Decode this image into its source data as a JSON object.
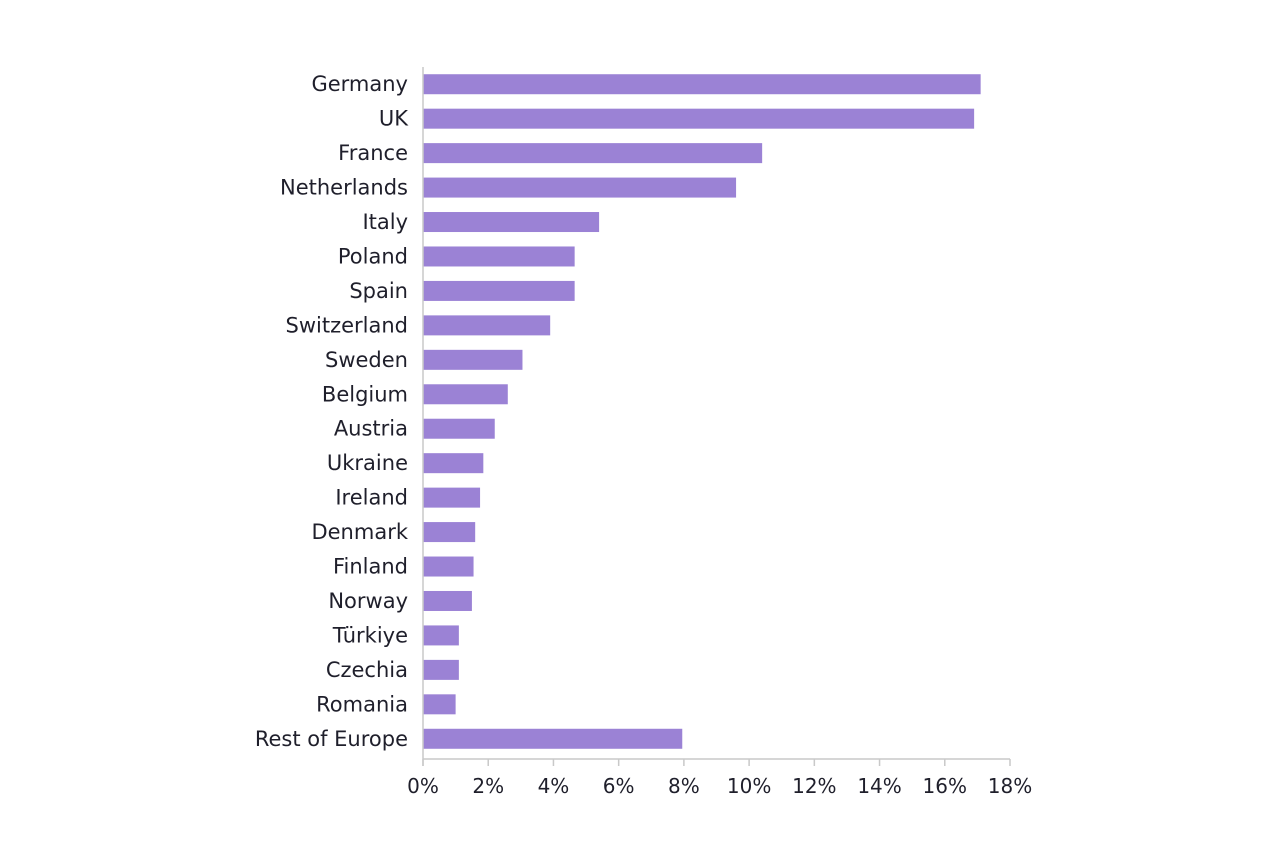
{
  "chart_data": {
    "type": "bar",
    "orientation": "horizontal",
    "categories": [
      "Germany",
      "UK",
      "France",
      "Netherlands",
      "Italy",
      "Poland",
      "Spain",
      "Switzerland",
      "Sweden",
      "Belgium",
      "Austria",
      "Ukraine",
      "Ireland",
      "Denmark",
      "Finland",
      "Norway",
      "Türkiye",
      "Czechia",
      "Romania",
      "Rest of Europe"
    ],
    "values": [
      17.1,
      16.9,
      10.4,
      9.6,
      5.4,
      4.65,
      4.65,
      3.9,
      3.05,
      2.6,
      2.2,
      1.85,
      1.75,
      1.6,
      1.55,
      1.5,
      1.1,
      1.1,
      1.0,
      7.95
    ],
    "unit": "%",
    "xlim": [
      0,
      18
    ],
    "x_ticks": [
      "0%",
      "2%",
      "4%",
      "6%",
      "8%",
      "10%",
      "12%",
      "14%",
      "16%",
      "18%"
    ],
    "bar_color": "#9b82d5",
    "axis_color": "#c9c9c9",
    "title": "",
    "xlabel": "",
    "ylabel": "",
    "grid": false,
    "legend": "none"
  }
}
